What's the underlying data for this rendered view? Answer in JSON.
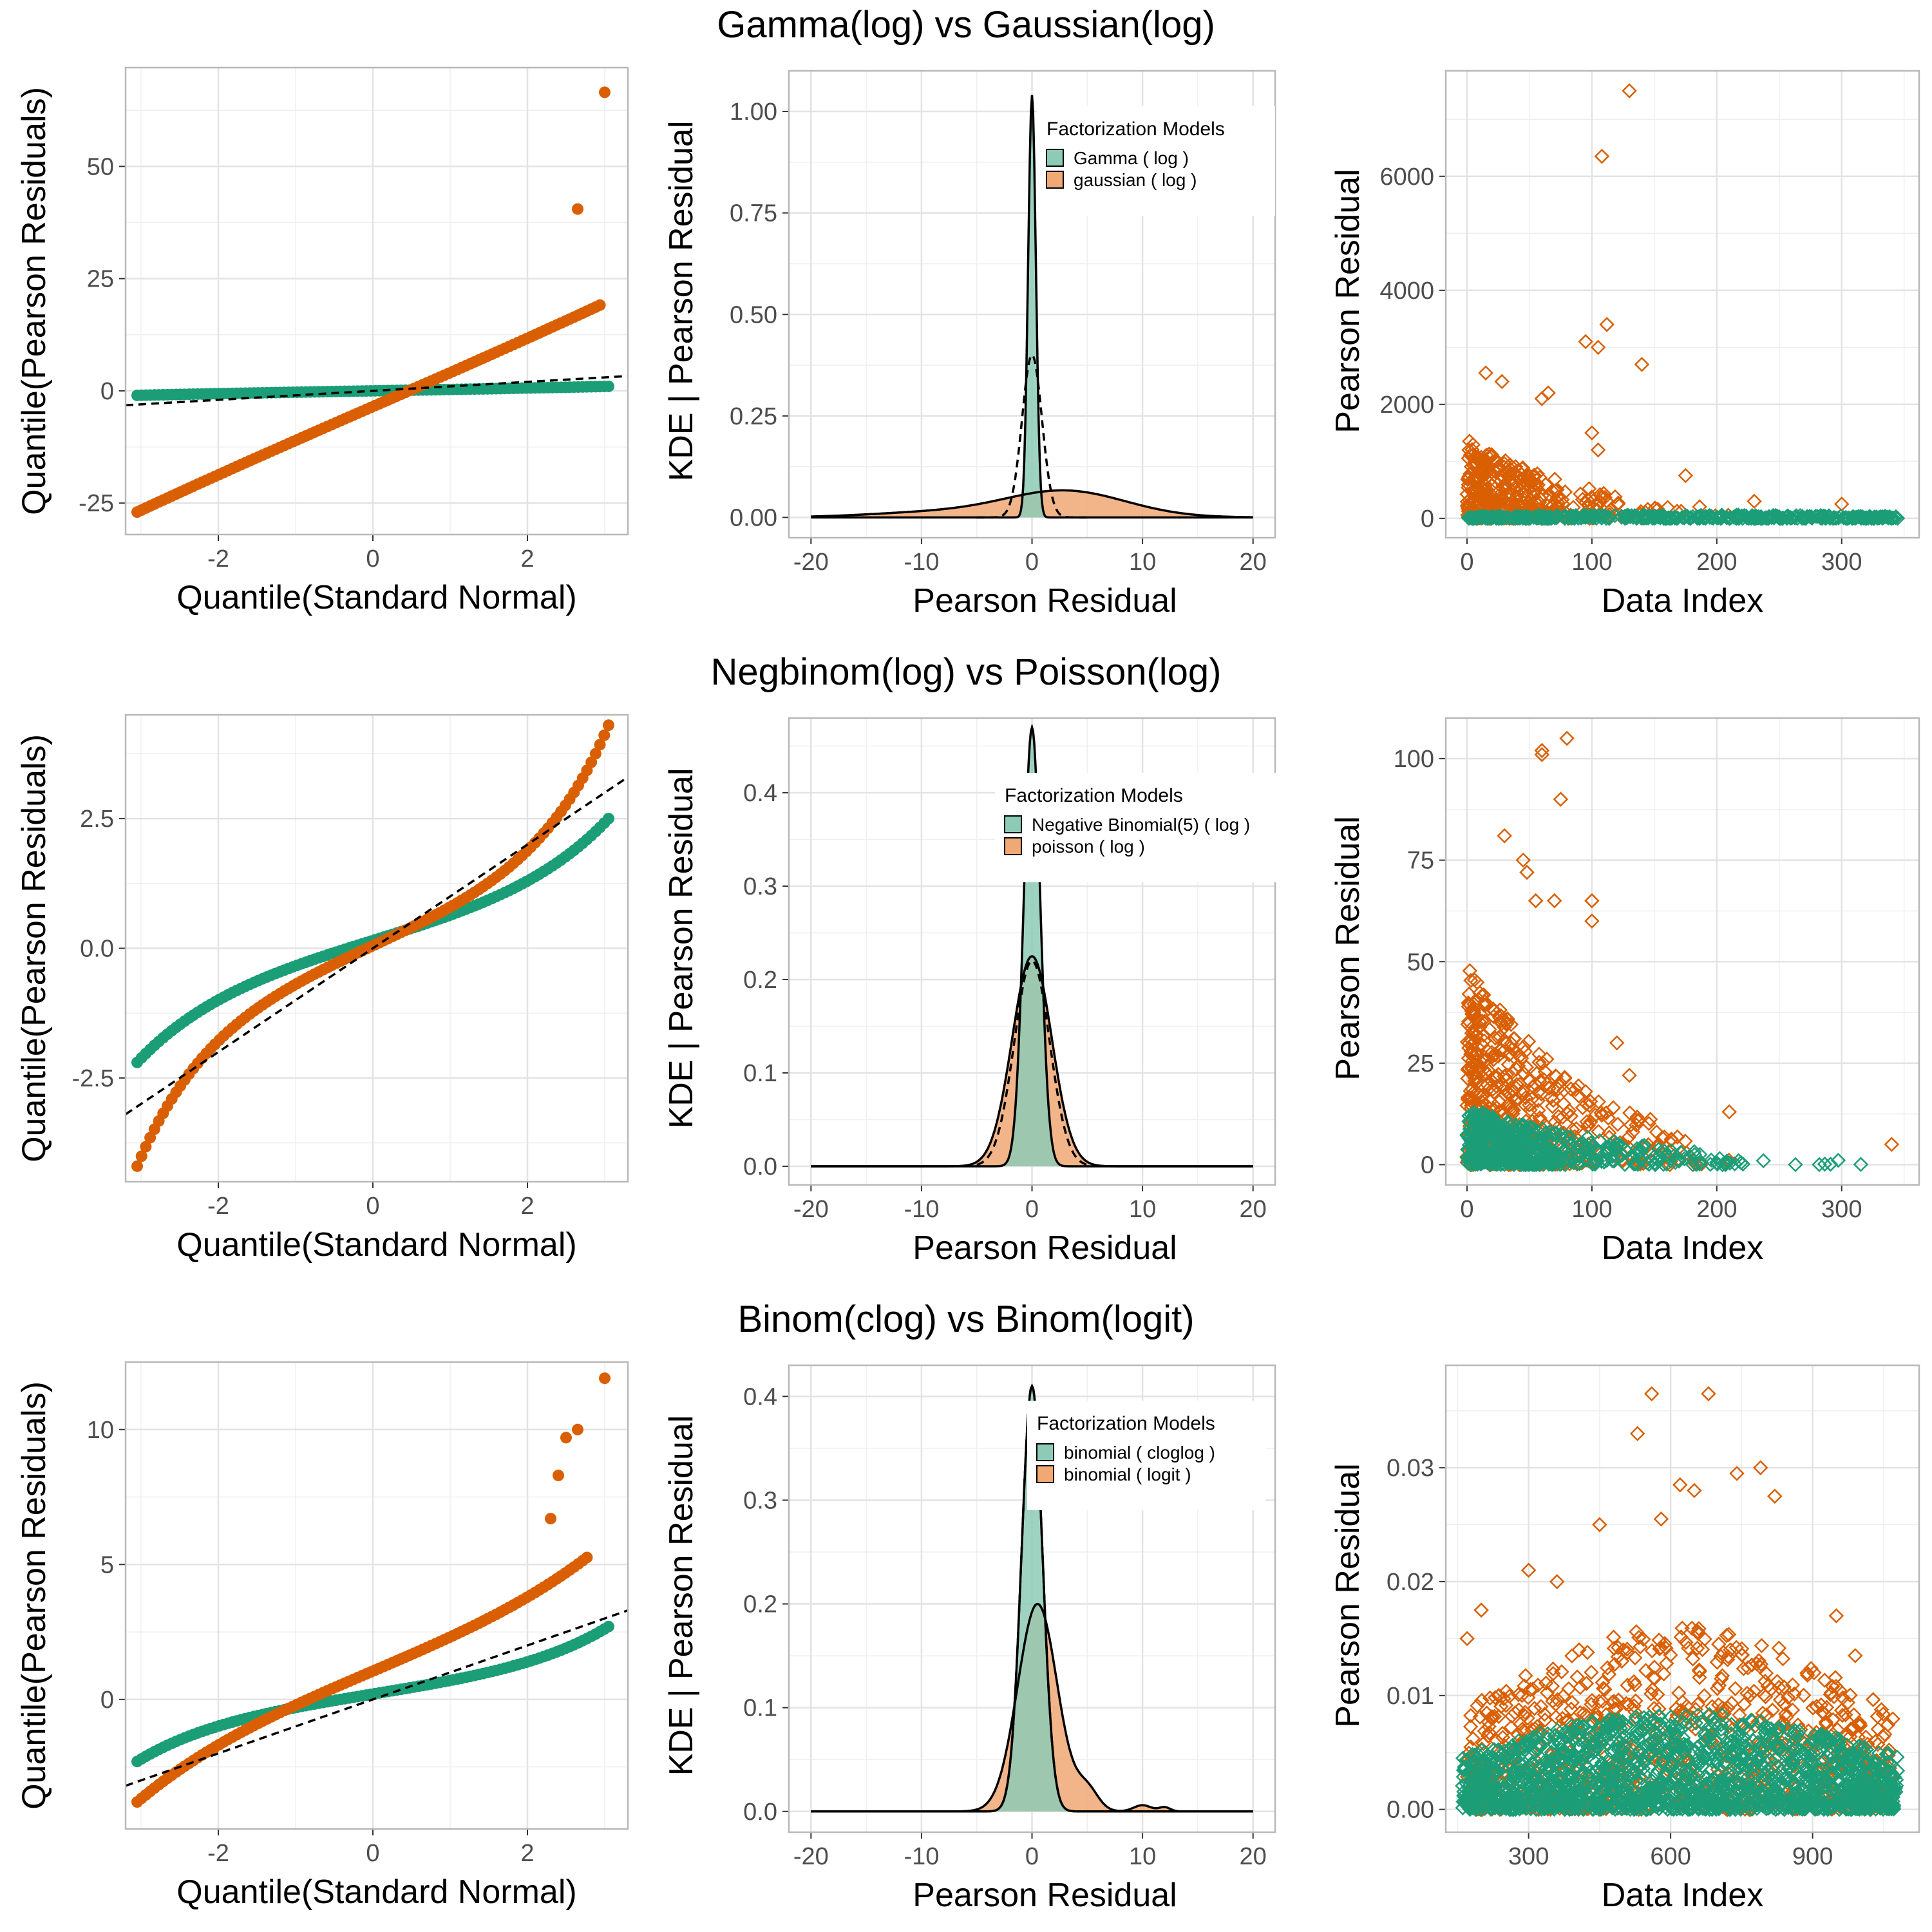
{
  "colors": {
    "green": "#1b9e77",
    "orange": "#d95f02",
    "green_fill": "#8ecbb6",
    "orange_fill": "#f0a874",
    "overlap_fill": "#a38e57",
    "grid": "#e3e3e3",
    "frame": "#b8b8b8",
    "text": "#000000",
    "tick_text": "#4d4d4d"
  },
  "legend_title": "Factorization Models",
  "rows": [
    {
      "title": "Gamma(log) vs Gaussian(log)",
      "legend": [
        "Gamma ( log )",
        "gaussian ( log )"
      ],
      "qq": {
        "xlabel": "Quantile(Standard Normal)",
        "ylabel": "Quantile(Pearson Residuals)",
        "xlim": [
          -3.2,
          3.3
        ],
        "ylim": [
          -32,
          72
        ],
        "xticks": [
          -2,
          0,
          2
        ],
        "yticks": [
          -25,
          0,
          25,
          50
        ],
        "line": {
          "slope": 1.0,
          "intercept": 0
        },
        "green": {
          "range": [
            -1.0,
            1.0
          ],
          "shape": 0.3,
          "extra": [],
          "skip": 0
        },
        "orange": {
          "range": [
            -27,
            20
          ],
          "shape": 0.15,
          "extra": [
            [
              2.65,
              40.5
            ],
            [
              3.0,
              66.5
            ]
          ],
          "skip": 2
        }
      },
      "kde": {
        "xlabel": "Pearson Residual",
        "ylabel": "KDE | Pearson Residual",
        "xlim": [
          -22,
          22
        ],
        "ylim": [
          -0.05,
          1.1
        ],
        "xticks": [
          -20,
          -10,
          0,
          10,
          20
        ],
        "yticks": [
          0.0,
          0.25,
          0.5,
          0.75,
          1.0
        ],
        "ytick_labels": [
          "0.00",
          "0.25",
          "0.50",
          "0.75",
          "1.00"
        ],
        "green": [
          {
            "mu": 0.0,
            "sd": 0.35,
            "amp": 1.04
          }
        ],
        "orange": [
          {
            "mu": 3.0,
            "sd": 5.5,
            "amp": 0.065
          },
          {
            "mu": -9.0,
            "sd": 6.0,
            "amp": 0.012
          }
        ],
        "dashed": {
          "mu": 0.0,
          "sd": 0.9,
          "amp": 0.4
        }
      },
      "scatter": {
        "xlabel": "Data Index",
        "ylabel": "Pearson Residual",
        "xlim": [
          -17,
          362
        ],
        "ylim": [
          -340,
          7850
        ],
        "xticks": [
          0,
          100,
          200,
          300
        ],
        "yticks": [
          0,
          2000,
          4000,
          6000
        ],
        "green": {
          "xmax": 345,
          "ymax": 60,
          "decay": 0.0,
          "n": 420
        },
        "orange": {
          "xmax": 330,
          "ymax": 1400,
          "decay": 45,
          "n": 380
        },
        "orange_outliers": [
          [
            15,
            2550
          ],
          [
            28,
            2400
          ],
          [
            65,
            2200
          ],
          [
            60,
            2100
          ],
          [
            95,
            3100
          ],
          [
            105,
            3000
          ],
          [
            112,
            3400
          ],
          [
            108,
            6350
          ],
          [
            130,
            7500
          ],
          [
            140,
            2700
          ],
          [
            100,
            1500
          ],
          [
            105,
            1200
          ],
          [
            175,
            750
          ],
          [
            230,
            300
          ],
          [
            300,
            250
          ]
        ]
      }
    },
    {
      "title": "Negbinom(log) vs Poisson(log)",
      "legend": [
        "Negative Binomial(5) ( log )",
        "poisson ( log )"
      ],
      "qq": {
        "xlabel": "Quantile(Standard Normal)",
        "ylabel": "Quantile(Pearson Residuals)",
        "xlim": [
          -3.2,
          3.3
        ],
        "ylim": [
          -4.5,
          4.5
        ],
        "xticks": [
          -2,
          0,
          2
        ],
        "yticks": [
          -2.5,
          0.0,
          2.5
        ],
        "ytick_labels": [
          "-2.5",
          "0.0",
          "2.5"
        ],
        "line": {
          "slope": 1.0,
          "intercept": 0
        },
        "green": {
          "range": [
            -2.2,
            2.5
          ],
          "shape": 0.85,
          "extra": [],
          "skip": 0
        },
        "orange": {
          "range": [
            -4.2,
            4.3
          ],
          "shape": 1.1,
          "extra": [],
          "skip": 0
        }
      },
      "kde": {
        "xlabel": "Pearson Residual",
        "ylabel": "KDE | Pearson Residual",
        "xlim": [
          -22,
          22
        ],
        "ylim": [
          -0.02,
          0.48
        ],
        "xticks": [
          -20,
          -10,
          0,
          10,
          20
        ],
        "yticks": [
          0.0,
          0.1,
          0.2,
          0.3,
          0.4
        ],
        "ytick_labels": [
          "0.0",
          "0.1",
          "0.2",
          "0.3",
          "0.4"
        ],
        "green": [
          {
            "mu": 0.0,
            "sd": 0.75,
            "amp": 0.47
          }
        ],
        "orange": [
          {
            "mu": 0.0,
            "sd": 1.8,
            "amp": 0.225
          }
        ],
        "dashed": {
          "mu": 0.0,
          "sd": 1.6,
          "amp": 0.22
        }
      },
      "scatter": {
        "xlabel": "Data Index",
        "ylabel": "Pearson Residual",
        "xlim": [
          -17,
          362
        ],
        "ylim": [
          -5,
          110
        ],
        "xticks": [
          0,
          100,
          200,
          300
        ],
        "yticks": [
          0,
          25,
          50,
          75,
          100
        ],
        "green": {
          "xmax": 350,
          "ymax": 14,
          "decay": 60,
          "n": 520
        },
        "orange": {
          "xmax": 350,
          "ymax": 50,
          "decay": 45,
          "n": 520
        },
        "orange_outliers": [
          [
            60,
            102
          ],
          [
            60,
            101
          ],
          [
            80,
            105
          ],
          [
            75,
            90
          ],
          [
            30,
            81
          ],
          [
            45,
            75
          ],
          [
            48,
            72
          ],
          [
            55,
            65
          ],
          [
            70,
            65
          ],
          [
            100,
            65
          ],
          [
            100,
            60
          ],
          [
            120,
            30
          ],
          [
            130,
            22
          ],
          [
            210,
            13
          ],
          [
            340,
            5
          ]
        ]
      }
    },
    {
      "title": "Binom(clog) vs Binom(logit)",
      "legend": [
        "binomial ( cloglog )",
        "binomial ( logit )"
      ],
      "qq": {
        "xlabel": "Quantile(Standard Normal)",
        "ylabel": "Quantile(Pearson Residuals)",
        "xlim": [
          -3.2,
          3.3
        ],
        "ylim": [
          -4.8,
          12.5
        ],
        "xticks": [
          -2,
          0,
          2
        ],
        "yticks": [
          0,
          5,
          10
        ],
        "line": {
          "slope": 1.0,
          "intercept": 0
        },
        "green": {
          "range": [
            -2.3,
            2.7
          ],
          "shape": 0.9,
          "extra": [],
          "skip": 0
        },
        "orange": {
          "range": [
            -3.8,
            5.9
          ],
          "shape": 0.55,
          "extra": [
            [
              2.3,
              6.7
            ],
            [
              2.4,
              8.3
            ],
            [
              2.5,
              9.7
            ],
            [
              2.65,
              10.0
            ],
            [
              3.0,
              11.9
            ]
          ],
          "skip": 5
        }
      },
      "kde": {
        "xlabel": "Pearson Residual",
        "ylabel": "KDE | Pearson Residual",
        "xlim": [
          -22,
          22
        ],
        "ylim": [
          -0.02,
          0.43
        ],
        "xticks": [
          -20,
          -10,
          0,
          10,
          20
        ],
        "yticks": [
          0.0,
          0.1,
          0.2,
          0.3,
          0.4
        ],
        "ytick_labels": [
          "0.0",
          "0.1",
          "0.2",
          "0.3",
          "0.4"
        ],
        "green": [
          {
            "mu": 0.0,
            "sd": 0.95,
            "amp": 0.41
          }
        ],
        "orange": [
          {
            "mu": 0.5,
            "sd": 1.8,
            "amp": 0.2
          },
          {
            "mu": 5.0,
            "sd": 1.0,
            "amp": 0.02
          },
          {
            "mu": 10.0,
            "sd": 0.8,
            "amp": 0.006
          },
          {
            "mu": 12.0,
            "sd": 0.5,
            "amp": 0.004
          }
        ],
        "dashed": {
          "mu": 0.0,
          "sd": 0.95,
          "amp": 0.41
        }
      },
      "scatter": {
        "xlabel": "Data Index",
        "ylabel": "Pearson Residual",
        "xlim": [
          125,
          1125
        ],
        "ylim": [
          -0.002,
          0.039
        ],
        "xticks": [
          300,
          600,
          900
        ],
        "yticks": [
          0.0,
          0.01,
          0.02,
          0.03
        ],
        "ytick_labels": [
          "0.00",
          "0.01",
          "0.02",
          "0.03"
        ],
        "green": {
          "xmax": 1080,
          "xmin": 160,
          "ymax": 0.0085,
          "decay": 0.0,
          "n": 1600
        },
        "orange": {
          "xmax": 1070,
          "xmin": 170,
          "ymax": 0.016,
          "decay": 0.0,
          "n": 900
        },
        "orange_outliers": [
          [
            560,
            0.0365
          ],
          [
            680,
            0.0365
          ],
          [
            530,
            0.033
          ],
          [
            740,
            0.0295
          ],
          [
            790,
            0.03
          ],
          [
            620,
            0.0285
          ],
          [
            650,
            0.028
          ],
          [
            820,
            0.0275
          ],
          [
            580,
            0.0255
          ],
          [
            450,
            0.025
          ],
          [
            300,
            0.021
          ],
          [
            360,
            0.02
          ],
          [
            200,
            0.0175
          ],
          [
            170,
            0.015
          ],
          [
            950,
            0.017
          ],
          [
            990,
            0.0135
          ]
        ]
      }
    }
  ]
}
